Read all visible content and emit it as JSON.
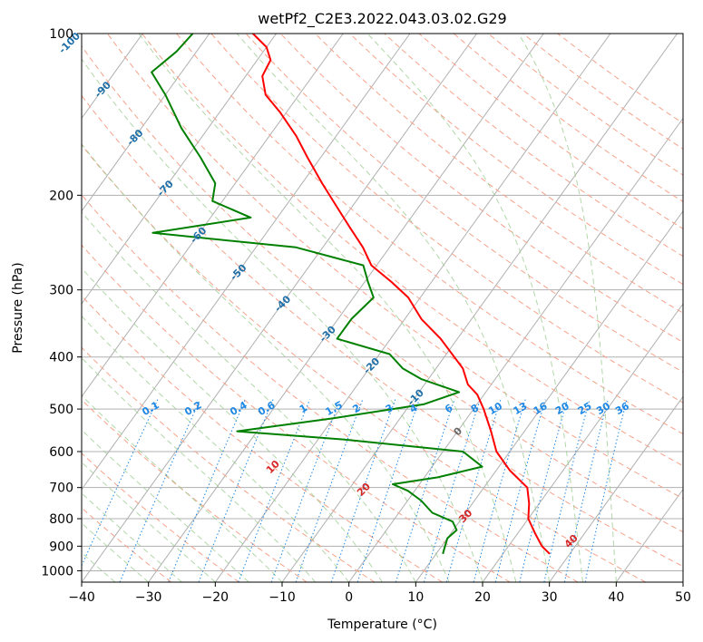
{
  "chart_data": {
    "type": "line",
    "title": "wetPf2_C2E3.2022.043.03.02.G29",
    "xlabel": "Temperature (°C)",
    "ylabel": "Pressure (hPa)",
    "xlim": [
      -40,
      50
    ],
    "ylim": [
      1050,
      100
    ],
    "yscale": "log",
    "skew": "skew-T log-P",
    "x_ticks": [
      "−40",
      "−30",
      "−20",
      "−10",
      "0",
      "10",
      "20",
      "30",
      "40",
      "50"
    ],
    "y_ticks": [
      "100",
      "200",
      "300",
      "400",
      "500",
      "600",
      "700",
      "800",
      "900",
      "1000"
    ],
    "grid": true,
    "series": [
      {
        "name": "",
        "role": "temperature",
        "color": "#ff0000",
        "points": [
          {
            "p": 930,
            "t": 27.0
          },
          {
            "p": 900,
            "t": 25.0
          },
          {
            "p": 850,
            "t": 22.5
          },
          {
            "p": 800,
            "t": 20.0
          },
          {
            "p": 750,
            "t": 18.5
          },
          {
            "p": 700,
            "t": 16.5
          },
          {
            "p": 650,
            "t": 12.0
          },
          {
            "p": 600,
            "t": 8.0
          },
          {
            "p": 550,
            "t": 5.0
          },
          {
            "p": 500,
            "t": 1.5
          },
          {
            "p": 470,
            "t": -1.0
          },
          {
            "p": 450,
            "t": -3.5
          },
          {
            "p": 420,
            "t": -6.0
          },
          {
            "p": 400,
            "t": -8.5
          },
          {
            "p": 370,
            "t": -12.5
          },
          {
            "p": 340,
            "t": -17.5
          },
          {
            "p": 310,
            "t": -21.8
          },
          {
            "p": 290,
            "t": -26.0
          },
          {
            "p": 270,
            "t": -30.8
          },
          {
            "p": 250,
            "t": -34.0
          },
          {
            "p": 230,
            "t": -38.0
          },
          {
            "p": 210,
            "t": -42.3
          },
          {
            "p": 190,
            "t": -47.0
          },
          {
            "p": 170,
            "t": -52.0
          },
          {
            "p": 155,
            "t": -56.0
          },
          {
            "p": 140,
            "t": -61.0
          },
          {
            "p": 130,
            "t": -65.0
          },
          {
            "p": 120,
            "t": -67.5
          },
          {
            "p": 112,
            "t": -68.0
          },
          {
            "p": 106,
            "t": -70.0
          },
          {
            "p": 100,
            "t": -73.5
          }
        ]
      },
      {
        "name": "",
        "role": "dewpoint",
        "color": "#008000",
        "points": [
          {
            "p": 930,
            "t": 11.0
          },
          {
            "p": 900,
            "t": 10.5
          },
          {
            "p": 870,
            "t": 10.0
          },
          {
            "p": 840,
            "t": 10.5
          },
          {
            "p": 810,
            "t": 9.0
          },
          {
            "p": 780,
            "t": 5.0
          },
          {
            "p": 740,
            "t": 2.0
          },
          {
            "p": 710,
            "t": -1.0
          },
          {
            "p": 690,
            "t": -4.0
          },
          {
            "p": 670,
            "t": 2.0
          },
          {
            "p": 640,
            "t": 7.5
          },
          {
            "p": 600,
            "t": 3.0
          },
          {
            "p": 570,
            "t": -16.0
          },
          {
            "p": 550,
            "t": -33.0
          },
          {
            "p": 520,
            "t": -20.0
          },
          {
            "p": 490,
            "t": -8.0
          },
          {
            "p": 465,
            "t": -4.0
          },
          {
            "p": 440,
            "t": -11.0
          },
          {
            "p": 420,
            "t": -15.0
          },
          {
            "p": 395,
            "t": -18.5
          },
          {
            "p": 370,
            "t": -28.0
          },
          {
            "p": 340,
            "t": -28.0
          },
          {
            "p": 310,
            "t": -27.0
          },
          {
            "p": 290,
            "t": -29.5
          },
          {
            "p": 270,
            "t": -32.0
          },
          {
            "p": 250,
            "t": -44.0
          },
          {
            "p": 235,
            "t": -67.0
          },
          {
            "p": 220,
            "t": -54.0
          },
          {
            "p": 205,
            "t": -61.5
          },
          {
            "p": 190,
            "t": -63.0
          },
          {
            "p": 170,
            "t": -68.0
          },
          {
            "p": 150,
            "t": -74.0
          },
          {
            "p": 130,
            "t": -80.0
          },
          {
            "p": 118,
            "t": -84.5
          },
          {
            "p": 108,
            "t": -83.0
          },
          {
            "p": 100,
            "t": -82.5
          }
        ]
      }
    ],
    "dry_adiabats": {
      "color": "#f5a28a",
      "label_color": "#d62728",
      "labels": [
        {
          "text": "10",
          "theta_c": 10
        },
        {
          "text": "20",
          "theta_c": 20
        },
        {
          "text": "30",
          "theta_c": 30
        },
        {
          "text": "40",
          "theta_c": 40
        }
      ]
    },
    "moist_adiabats": {
      "color": "#98c98c",
      "label_color": "#1f6fa8",
      "labels": [
        {
          "text": "0",
          "t_c": 0,
          "color": "#666666"
        },
        {
          "text": "-10",
          "t_c": -10
        },
        {
          "text": "-20",
          "t_c": -20
        },
        {
          "text": "-30",
          "t_c": -30
        },
        {
          "text": "-40",
          "t_c": -40
        },
        {
          "text": "-50",
          "t_c": -50
        },
        {
          "text": "-60",
          "t_c": -60
        },
        {
          "text": "-70",
          "t_c": -70
        },
        {
          "text": "-80",
          "t_c": -80
        },
        {
          "text": "-90",
          "t_c": -90
        },
        {
          "text": "-100",
          "t_c": -100
        }
      ]
    },
    "mixing_ratio_lines": {
      "color": "#1e88e5",
      "labels": [
        "0.1",
        "0.2",
        "0.4",
        "0.6",
        "1",
        "1.5",
        "2",
        "3",
        "4",
        "6",
        "8",
        "10",
        "13",
        "16",
        "20",
        "25",
        "30",
        "36"
      ]
    }
  }
}
